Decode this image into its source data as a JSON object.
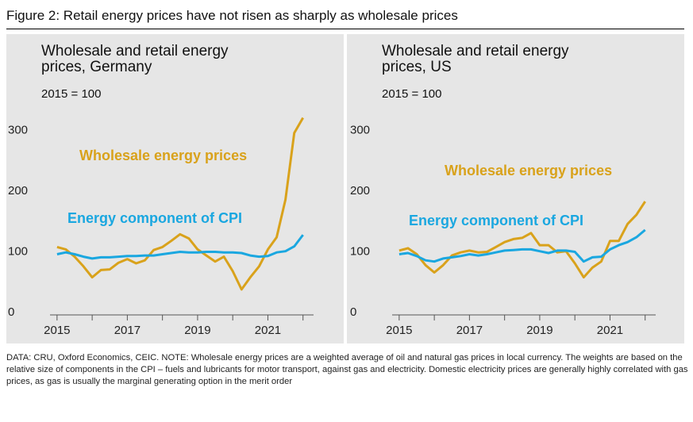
{
  "title": "Figure 2: Retail energy prices have not risen as sharply as wholesale prices",
  "note": "DATA: CRU, Oxford Economics, CEIC. NOTE: Wholesale energy prices are a weighted average of oil and natural gas prices in local currency. The weights are based on the relative size of components in the CPI – fuels and lubricants for motor transport, against gas and electricity. Domestic electricity prices are generally highly correlated with gas prices, as gas is usually the marginal generating option in the merit order",
  "chart_data": [
    {
      "type": "line",
      "title": "Wholesale and retail energy prices, Germany",
      "subtitle": "2015 = 100",
      "x": [
        2015,
        2015.25,
        2015.5,
        2015.75,
        2016,
        2016.25,
        2016.5,
        2016.75,
        2017,
        2017.25,
        2017.5,
        2017.75,
        2018,
        2018.25,
        2018.5,
        2018.75,
        2019,
        2019.25,
        2019.5,
        2019.75,
        2020,
        2020.25,
        2020.5,
        2020.75,
        2021,
        2021.25,
        2021.5,
        2021.75,
        2022
      ],
      "series": [
        {
          "name": "Wholesale energy prices",
          "color": "#d9a21b",
          "values": [
            112,
            108,
            96,
            80,
            62,
            74,
            75,
            86,
            92,
            85,
            90,
            107,
            112,
            122,
            133,
            126,
            108,
            98,
            88,
            96,
            72,
            42,
            62,
            80,
            108,
            128,
            190,
            300,
            325
          ]
        },
        {
          "name": "Energy component of CPI",
          "color": "#1aa7e0",
          "values": [
            100,
            103,
            100,
            96,
            93,
            95,
            95,
            96,
            97,
            97,
            98,
            98,
            100,
            102,
            104,
            103,
            103,
            104,
            104,
            103,
            103,
            102,
            98,
            96,
            97,
            103,
            105,
            113,
            132
          ]
        }
      ],
      "xlim": [
        2014.8,
        2022.3
      ],
      "xticks": [
        2015,
        2017,
        2019,
        2021
      ],
      "minor_xticks": [
        2016,
        2018,
        2020,
        2022
      ],
      "ylim": [
        0,
        340
      ],
      "yticks": [
        0,
        100,
        200,
        300
      ]
    },
    {
      "type": "line",
      "title": "Wholesale and retail energy prices, US",
      "subtitle": "2015 = 100",
      "x": [
        2015,
        2015.25,
        2015.5,
        2015.75,
        2016,
        2016.25,
        2016.5,
        2016.75,
        2017,
        2017.25,
        2017.5,
        2017.75,
        2018,
        2018.25,
        2018.5,
        2018.75,
        2019,
        2019.25,
        2019.5,
        2019.75,
        2020,
        2020.25,
        2020.5,
        2020.75,
        2021,
        2021.25,
        2021.5,
        2021.75,
        2022
      ],
      "series": [
        {
          "name": "Wholesale energy prices",
          "color": "#d9a21b",
          "values": [
            106,
            110,
            100,
            82,
            70,
            82,
            98,
            103,
            106,
            103,
            104,
            112,
            120,
            125,
            127,
            135,
            115,
            115,
            103,
            105,
            85,
            62,
            78,
            88,
            122,
            122,
            150,
            165,
            187
          ]
        },
        {
          "name": "Energy component of CPI",
          "color": "#1aa7e0",
          "values": [
            100,
            102,
            97,
            90,
            88,
            93,
            95,
            97,
            100,
            98,
            100,
            103,
            106,
            107,
            108,
            108,
            105,
            102,
            106,
            106,
            104,
            88,
            95,
            96,
            108,
            115,
            120,
            128,
            140
          ]
        }
      ],
      "xlim": [
        2014.8,
        2022.3
      ],
      "xticks": [
        2015,
        2017,
        2019,
        2021
      ],
      "minor_xticks": [
        2016,
        2018,
        2020,
        2022
      ],
      "ylim": [
        0,
        340
      ],
      "yticks": [
        0,
        100,
        200,
        300
      ]
    }
  ]
}
